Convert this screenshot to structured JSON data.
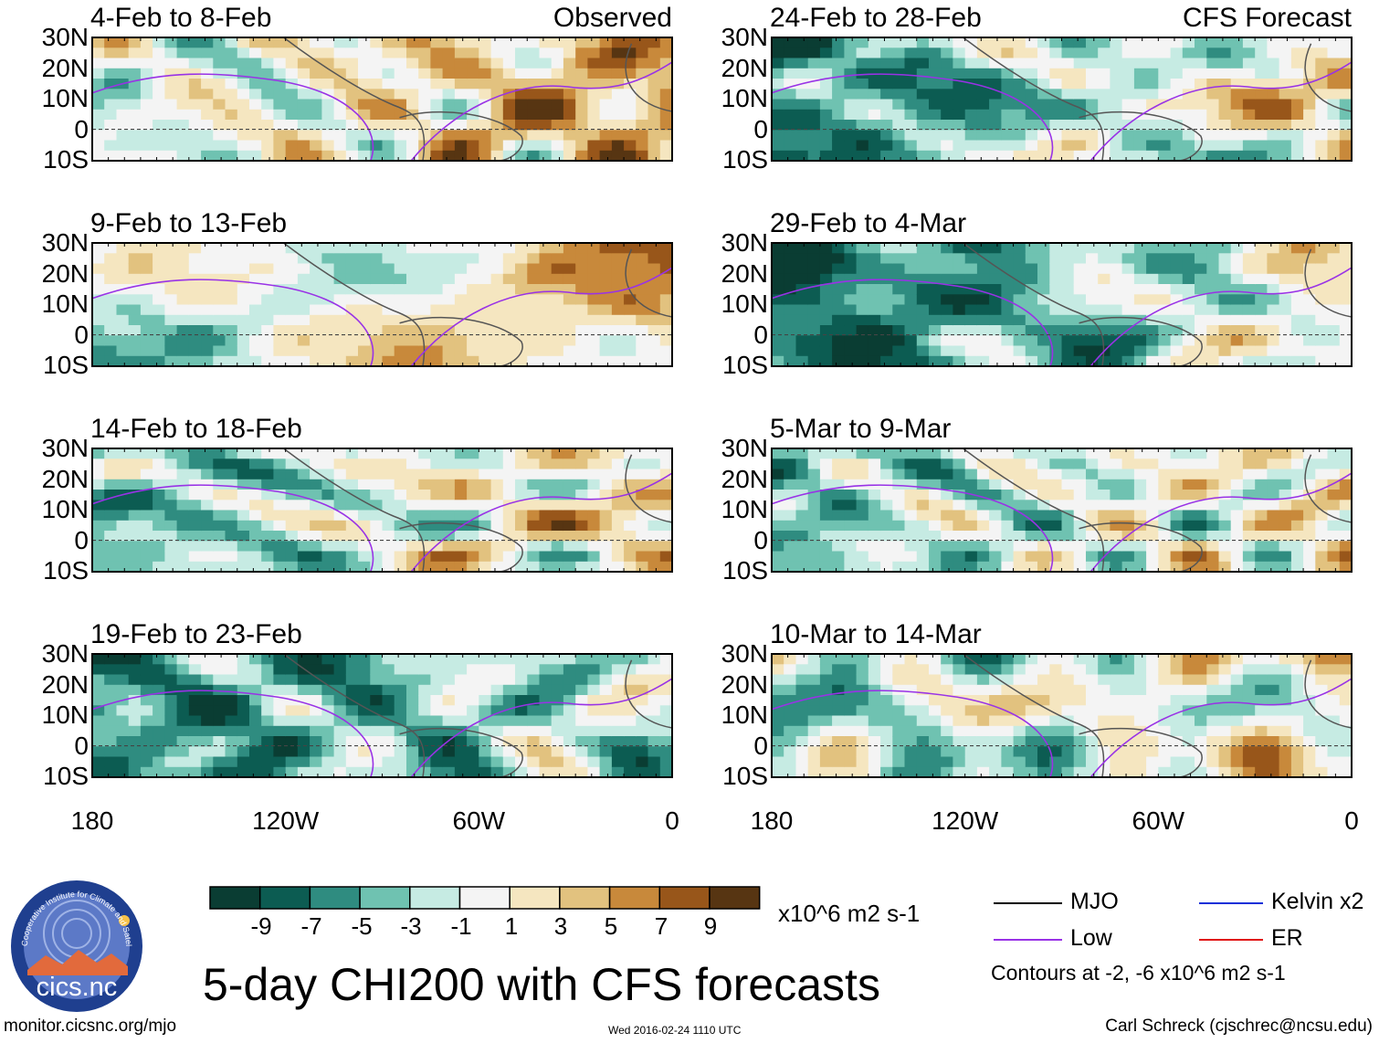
{
  "figure": {
    "main_title": "5-day CHI200 with CFS forecasts",
    "footer_left": "monitor.cicsnc.org/mjo",
    "footer_center": "Wed 2016-02-24 1110 UTC",
    "footer_right": "Carl Schreck (cjschrec@ncsu.edu)",
    "logo_text": "cics.nc",
    "logo_ring_text": "Cooperative Institute for Climate and Satellites"
  },
  "chart_data": {
    "type": "heatmap",
    "variable": "CHI200",
    "lat_ticks": [
      "30N",
      "20N",
      "10N",
      "0",
      "10S"
    ],
    "lon_ticks": [
      "180",
      "120W",
      "60W",
      "0"
    ],
    "panels": [
      {
        "title": "4-Feb to 8-Feb",
        "tag": "Observed",
        "column": "observed"
      },
      {
        "title": "9-Feb to 13-Feb",
        "tag": "",
        "column": "observed"
      },
      {
        "title": "14-Feb to 18-Feb",
        "tag": "",
        "column": "observed"
      },
      {
        "title": "19-Feb to 23-Feb",
        "tag": "",
        "column": "observed"
      },
      {
        "title": "24-Feb to 28-Feb",
        "tag": "CFS Forecast",
        "column": "forecast"
      },
      {
        "title": "29-Feb to 4-Mar",
        "tag": "",
        "column": "forecast"
      },
      {
        "title": "5-Mar to 9-Mar",
        "tag": "",
        "column": "forecast"
      },
      {
        "title": "10-Mar to 14-Mar",
        "tag": "",
        "column": "forecast"
      }
    ],
    "colorbar": {
      "units": "x10^6 m2 s-1",
      "labels": [
        "-9",
        "-7",
        "-5",
        "-3",
        "-1",
        "1",
        "3",
        "5",
        "7",
        "9"
      ],
      "colors": [
        "#0a3d33",
        "#0c5c52",
        "#2f8c80",
        "#6fc2b1",
        "#c6ebe3",
        "#f4f4f4",
        "#f5e6c0",
        "#e2c27f",
        "#c8893b",
        "#98561a",
        "#573512"
      ]
    },
    "legend": [
      {
        "label": "MJO",
        "color": "#000000"
      },
      {
        "label": "Kelvin x2",
        "color": "#1030d8"
      },
      {
        "label": "Low",
        "color": "#9932e6"
      },
      {
        "label": "ER",
        "color": "#e01010"
      }
    ],
    "contour_note": "Contours at -2, -6 x10^6 m2 s-1"
  }
}
